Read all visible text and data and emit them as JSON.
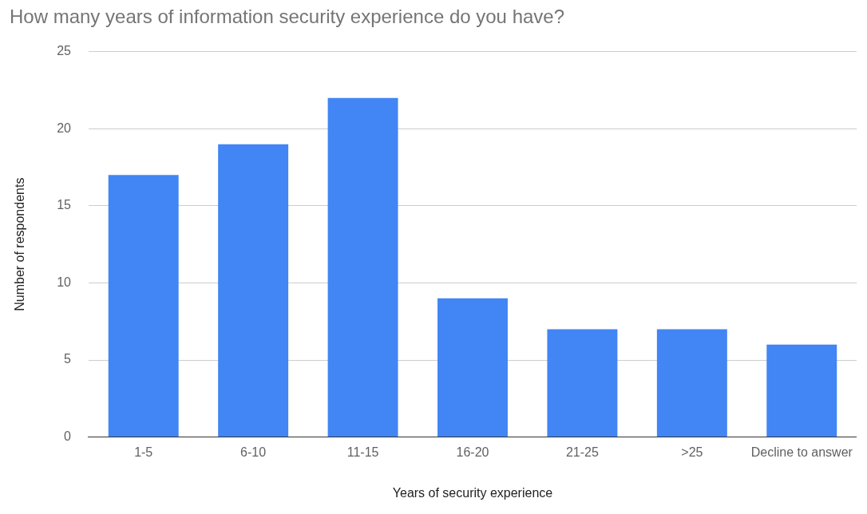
{
  "chart_data": {
    "type": "bar",
    "title": "How many years of information security experience do you have?",
    "xlabel": "Years of security experience",
    "ylabel": "Number of respondents",
    "categories": [
      "1-5",
      "6-10",
      "11-15",
      "16-20",
      "21-25",
      ">25",
      "Decline to answer"
    ],
    "values": [
      17,
      19,
      22,
      9,
      7,
      7,
      6
    ],
    "color": "#4285f4",
    "ylim": [
      0,
      25
    ],
    "yticks": [
      0,
      5,
      10,
      15,
      20,
      25
    ],
    "grid": "y",
    "legend": false
  }
}
